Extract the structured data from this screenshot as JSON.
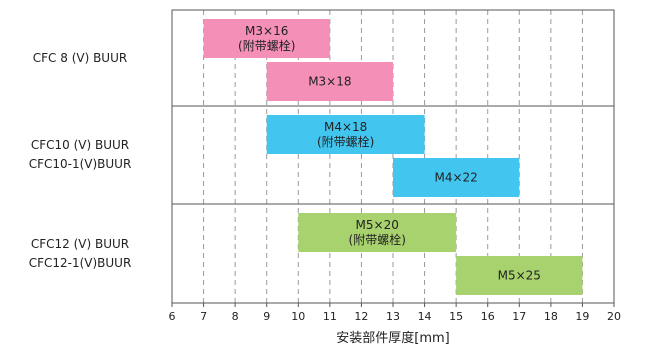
{
  "chart_data": {
    "type": "bar",
    "orientation": "horizontal-range",
    "xlabel": "安装部件厚度[mm]",
    "xlim": [
      6,
      20
    ],
    "x_ticks": [
      "6",
      "7",
      "8",
      "9",
      "10",
      "11",
      "12",
      "13",
      "14",
      "15",
      "16",
      "17",
      "18",
      "19",
      "20"
    ],
    "grid": "vertical dashed",
    "groups": [
      {
        "label_lines": [
          "CFC 8 (V) BUUR"
        ]
      },
      {
        "label_lines": [
          "CFC10 (V) BUUR",
          "CFC10-1(V)BUUR"
        ]
      },
      {
        "label_lines": [
          "CFC12 (V) BUUR",
          "CFC12-1(V)BUUR"
        ]
      }
    ],
    "bars": [
      {
        "group": 0,
        "lane": 0,
        "start": 7,
        "end": 11,
        "color": "#f48fb8",
        "label_lines": [
          "M3×16",
          "(附带螺栓)"
        ]
      },
      {
        "group": 0,
        "lane": 1,
        "start": 9,
        "end": 13,
        "color": "#f48fb8",
        "label_lines": [
          "M3×18"
        ]
      },
      {
        "group": 1,
        "lane": 0,
        "start": 9,
        "end": 14,
        "color": "#42c6f0",
        "label_lines": [
          "M4×18",
          "(附带螺栓)"
        ]
      },
      {
        "group": 1,
        "lane": 1,
        "start": 13,
        "end": 17,
        "color": "#42c6f0",
        "label_lines": [
          "M4×22"
        ]
      },
      {
        "group": 2,
        "lane": 0,
        "start": 10,
        "end": 15,
        "color": "#a8d26e",
        "label_lines": [
          "M5×20",
          "(附带螺栓)"
        ]
      },
      {
        "group": 2,
        "lane": 1,
        "start": 15,
        "end": 19,
        "color": "#a8d26e",
        "label_lines": [
          "M5×25"
        ]
      }
    ]
  }
}
